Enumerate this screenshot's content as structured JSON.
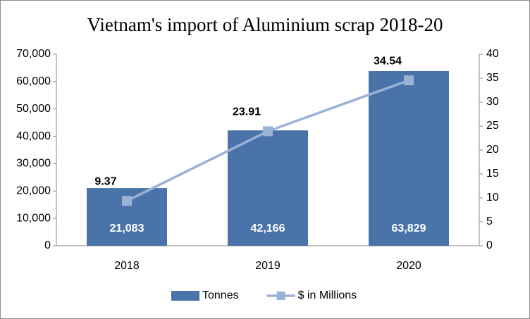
{
  "chart_data": {
    "type": "bar",
    "title": "Vietnam's import of Aluminium scrap 2018-20",
    "categories": [
      "2018",
      "2019",
      "2020"
    ],
    "series": [
      {
        "name": "Tonnes",
        "type": "bar",
        "color": "#4a74a9",
        "values": [
          21083,
          42166,
          63829
        ],
        "value_labels": [
          "21,083",
          "42,166",
          "63,829"
        ]
      },
      {
        "name": "$ in Millions",
        "type": "line",
        "axis": "y2",
        "color": "#9bb1d6",
        "values": [
          9.37,
          23.91,
          34.54
        ]
      }
    ],
    "ylim": [
      0,
      70000
    ],
    "yticks": [
      0,
      {
        "value": 10000,
        "label": "10,000"
      },
      {
        "value": 20000,
        "label": "20,000"
      },
      {
        "value": 30000,
        "label": "30,000"
      },
      {
        "value": 40000,
        "label": "40,000"
      },
      {
        "value": 50000,
        "label": "50,000"
      },
      {
        "value": 60000,
        "label": "60,000"
      },
      {
        "value": 70000,
        "label": "70,000"
      }
    ],
    "y2lim": [
      0,
      40
    ],
    "y2ticks": [
      0,
      5,
      10,
      15,
      20,
      25,
      30,
      35,
      40
    ],
    "legend": "bottom"
  }
}
